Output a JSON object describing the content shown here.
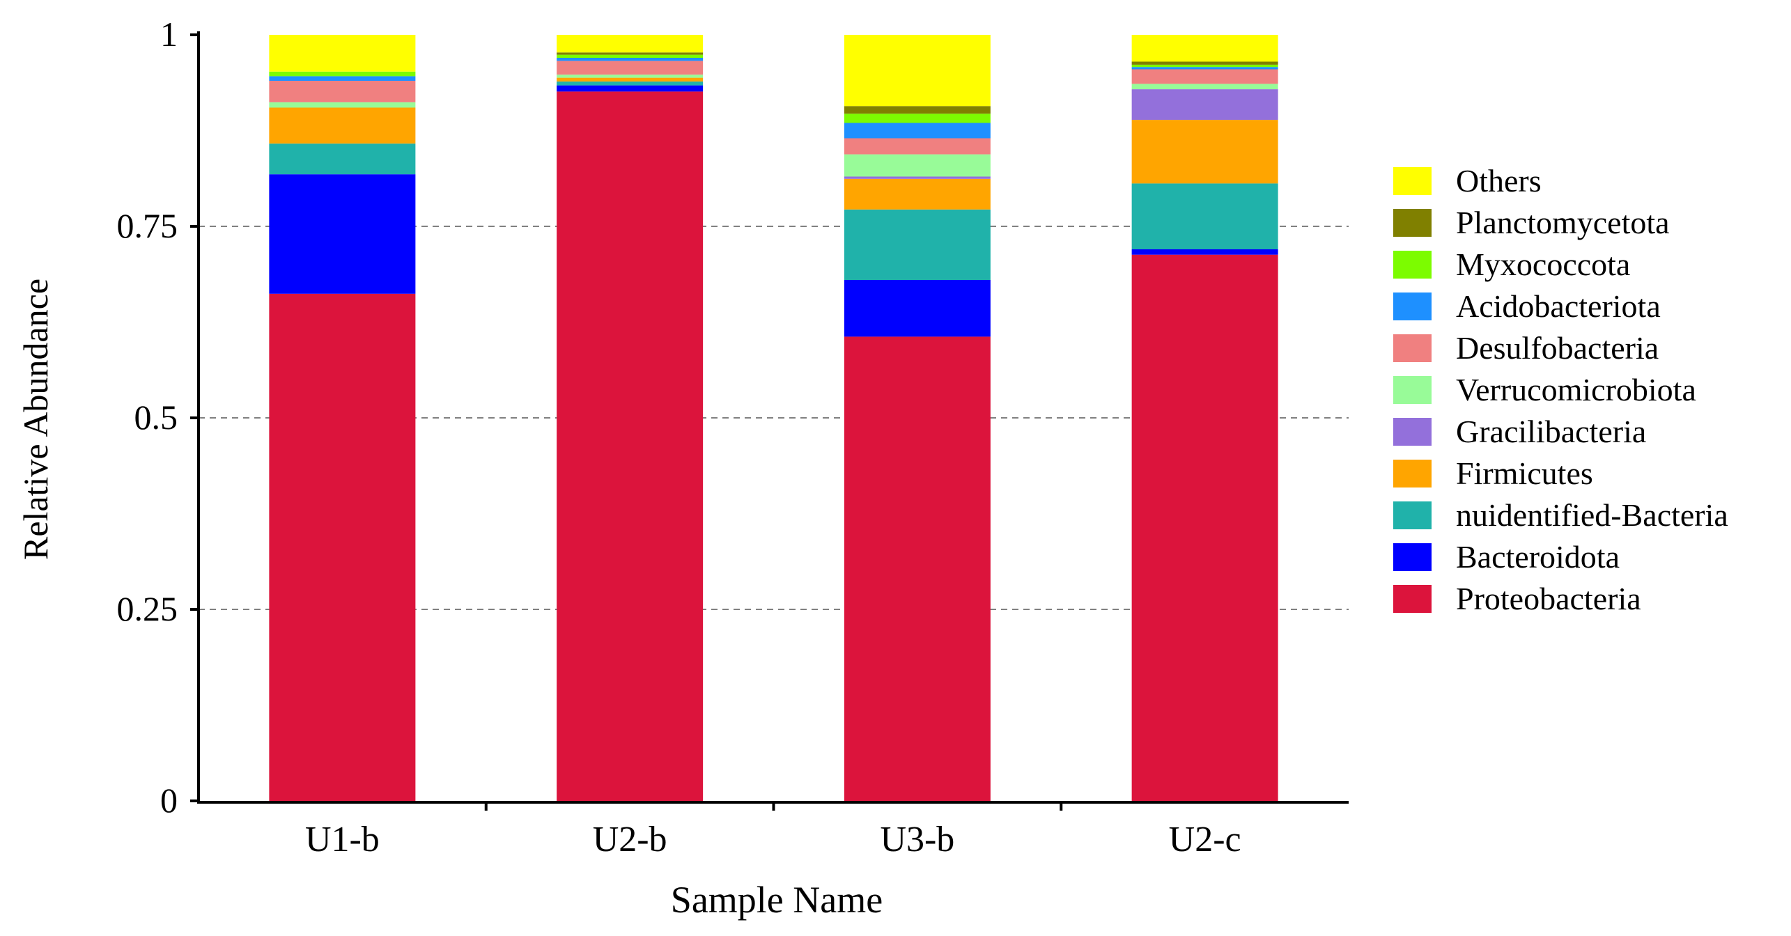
{
  "chart_data": {
    "type": "bar",
    "stacked": true,
    "xlabel": "Sample Name",
    "ylabel": "Relative Abundance",
    "ylim": [
      0,
      1
    ],
    "yticks": [
      {
        "value": 0,
        "label": "0"
      },
      {
        "value": 0.25,
        "label": "0.25"
      },
      {
        "value": 0.5,
        "label": "0.5"
      },
      {
        "value": 0.75,
        "label": "0.75"
      },
      {
        "value": 1,
        "label": "1"
      }
    ],
    "grid": "dashed horizontal lines at 0.25, 0.5, 0.75",
    "legend_placement": "right",
    "categories": [
      "U1-b",
      "U2-b",
      "U3-b",
      "U2-c"
    ],
    "series": [
      {
        "name": "Proteobacteria",
        "color": "#DC143C",
        "values": [
          0.662,
          0.926,
          0.606,
          0.713
        ]
      },
      {
        "name": "Bacteroidota",
        "color": "#0000FF",
        "values": [
          0.156,
          0.008,
          0.074,
          0.007
        ]
      },
      {
        "name": "nuidentified-Bacteria",
        "color": "#20B2AA",
        "values": [
          0.04,
          0.005,
          0.092,
          0.086
        ]
      },
      {
        "name": "Firmicutes",
        "color": "#FFA500",
        "values": [
          0.047,
          0.005,
          0.04,
          0.083
        ]
      },
      {
        "name": "Gracilibacteria",
        "color": "#9370DB",
        "values": [
          0.0,
          0.0,
          0.003,
          0.04
        ]
      },
      {
        "name": "Verrucomicrobiota",
        "color": "#98FB98",
        "values": [
          0.007,
          0.004,
          0.029,
          0.007
        ]
      },
      {
        "name": "Desulfobacteria",
        "color": "#F08080",
        "values": [
          0.028,
          0.018,
          0.021,
          0.019
        ]
      },
      {
        "name": "Acidobacteriota",
        "color": "#1E90FF",
        "values": [
          0.006,
          0.004,
          0.02,
          0.003
        ]
      },
      {
        "name": "Myxococcota",
        "color": "#7CFC00",
        "values": [
          0.006,
          0.004,
          0.012,
          0.003
        ]
      },
      {
        "name": "Planctomycetota",
        "color": "#808000",
        "values": [
          0.0,
          0.003,
          0.01,
          0.004
        ]
      },
      {
        "name": "Others",
        "color": "#FFFF00",
        "values": [
          0.048,
          0.023,
          0.093,
          0.035
        ]
      }
    ]
  }
}
